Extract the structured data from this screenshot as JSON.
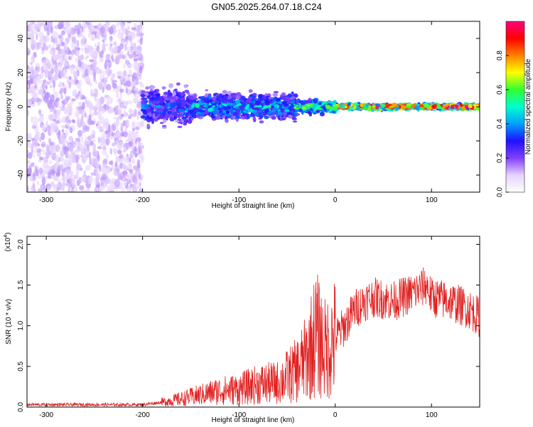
{
  "title": "GN05.2025.264.07.18.C24",
  "colors": {
    "snr_line": "#e02020",
    "axis": "#000000",
    "colormap": [
      "#ffffff",
      "#e6d2ff",
      "#8040ff",
      "#2010ff",
      "#00a0ff",
      "#00ffcc",
      "#30ff30",
      "#ffff00",
      "#ff8000",
      "#ff0000",
      "#ff0080"
    ]
  },
  "chart_data": [
    {
      "type": "heatmap",
      "xlabel": "Height of straight line (km)",
      "ylabel": "Frequency (Hz)",
      "xlim": [
        -320,
        150
      ],
      "ylim": [
        -50,
        50
      ],
      "x_ticks": [
        -300,
        -200,
        -100,
        0,
        100
      ],
      "y_ticks": [
        -40,
        -20,
        0,
        20,
        40
      ],
      "colorbar": {
        "label": "Normalized spectral amplitude",
        "range": [
          0,
          1
        ],
        "ticks": [
          0.0,
          0.2,
          0.4,
          0.6,
          0.8
        ]
      },
      "regions": [
        {
          "x": [
            -320,
            -200
          ],
          "freq": [
            -50,
            50
          ],
          "level": 0.12,
          "pattern": "scattered noise"
        },
        {
          "x": [
            -200,
            -150
          ],
          "freq": [
            -15,
            15
          ],
          "level": 0.35,
          "pattern": "broad band"
        },
        {
          "x": [
            -150,
            -40
          ],
          "freq": [
            -10,
            10
          ],
          "level": 0.45,
          "pattern": "band"
        },
        {
          "x": [
            -40,
            0
          ],
          "freq": [
            -5,
            5
          ],
          "level": 0.6,
          "pattern": "narrow band"
        },
        {
          "x": [
            0,
            150
          ],
          "freq": [
            -2,
            2
          ],
          "level": 0.9,
          "pattern": "narrow line near 0 Hz"
        }
      ]
    },
    {
      "type": "line",
      "xlabel": "Height of straight line (km)",
      "ylabel": "SNR (10 * v/v)",
      "multiplier": "(x10",
      "multiplier_exp": "4",
      "multiplier_close": ")",
      "xlim": [
        -320,
        150
      ],
      "ylim": [
        0,
        2.1
      ],
      "x_ticks": [
        -300,
        -200,
        -100,
        0,
        100
      ],
      "y_ticks": [
        "0.0",
        "0.5",
        "1.0",
        "1.5",
        "2.0"
      ],
      "y_tick_values": [
        0.0,
        0.5,
        1.0,
        1.5,
        2.0
      ],
      "series": [
        {
          "x": [
            -320,
            -300,
            -250,
            -200,
            -180,
            -160,
            -140,
            -120,
            -100,
            -80,
            -60,
            -40,
            -30,
            -20,
            -10,
            0,
            10,
            20,
            30,
            40,
            60,
            80,
            95,
            100,
            120,
            140,
            150
          ],
          "y": [
            0.03,
            0.03,
            0.03,
            0.03,
            0.06,
            0.1,
            0.15,
            0.2,
            0.22,
            0.28,
            0.3,
            0.45,
            0.6,
            0.9,
            0.7,
            0.85,
            1.0,
            1.2,
            1.3,
            1.35,
            1.3,
            1.4,
            1.5,
            1.35,
            1.3,
            1.2,
            1.1
          ]
        }
      ]
    }
  ]
}
